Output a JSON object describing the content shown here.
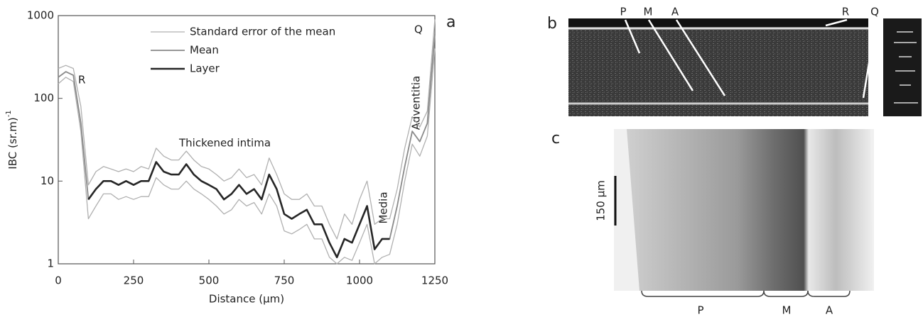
{
  "chart_data": {
    "type": "line",
    "panel_label": "a",
    "xlabel": "Distance (µm)",
    "ylabel": {
      "text": "IBC (sr.m)",
      "superscript": "-1"
    },
    "x": [
      0,
      25,
      50,
      75,
      100,
      125,
      150,
      175,
      200,
      225,
      250,
      275,
      300,
      325,
      350,
      375,
      400,
      425,
      450,
      475,
      500,
      525,
      550,
      575,
      600,
      625,
      650,
      675,
      700,
      725,
      750,
      775,
      800,
      825,
      850,
      875,
      900,
      925,
      950,
      975,
      1000,
      1025,
      1050,
      1075,
      1100,
      1125,
      1150,
      1175,
      1200,
      1225,
      1250
    ],
    "series": [
      {
        "name": "Standard error of the mean",
        "color": "#b0b0b0",
        "width": 1.3,
        "values": [
          230,
          250,
          230,
          80,
          9,
          13,
          15,
          14,
          13,
          14,
          13,
          15,
          14,
          25,
          20,
          18,
          18,
          23,
          18,
          15,
          14,
          12,
          10,
          11,
          14,
          11,
          12,
          9,
          19,
          12,
          7,
          6,
          6,
          7,
          5,
          5,
          3,
          2,
          4,
          3,
          6,
          10,
          3,
          3.5,
          3.5,
          8,
          25,
          60,
          45,
          70,
          900
        ]
      },
      {
        "color": "#b0b0b0",
        "width": 1.3,
        "values": [
          150,
          180,
          160,
          40,
          3.5,
          5,
          7,
          7,
          6,
          6.5,
          6,
          6.5,
          6.5,
          11,
          9,
          8,
          8,
          10,
          8,
          7,
          6,
          5,
          4,
          4.5,
          6,
          5,
          5.5,
          4,
          7,
          5,
          2.5,
          2.3,
          2.6,
          3,
          2,
          2,
          1.2,
          1,
          1.2,
          1.1,
          1.8,
          3,
          1,
          1.2,
          1.3,
          3,
          10,
          28,
          20,
          35,
          400
        ]
      },
      {
        "name": "Mean",
        "color": "#8a8a8a",
        "width": 1.8,
        "values": [
          180,
          210,
          190,
          50,
          6,
          8,
          10,
          10,
          9,
          10,
          9,
          10,
          10,
          17,
          13,
          12,
          12,
          16,
          12,
          10,
          9,
          8,
          6,
          7,
          9,
          7,
          8,
          6,
          12,
          8,
          4,
          3.5,
          4,
          4.5,
          3,
          3,
          1.8,
          1.2,
          2,
          1.8,
          3,
          5,
          1.5,
          2,
          2,
          5,
          15,
          40,
          30,
          50,
          600
        ]
      },
      {
        "name": "Layer",
        "color": "#262626",
        "width": 2.6,
        "values": [
          null,
          null,
          null,
          null,
          6,
          8,
          10,
          10,
          9,
          10,
          9,
          10,
          10,
          17,
          13,
          12,
          12,
          16,
          12,
          10,
          9,
          8,
          6,
          7,
          9,
          7,
          8,
          6,
          12,
          8,
          4,
          3.5,
          4,
          4.5,
          3,
          3,
          1.8,
          1.2,
          2,
          1.8,
          3,
          5,
          1.5,
          2,
          2,
          null,
          null,
          null,
          null,
          null,
          null
        ]
      }
    ],
    "xlim": [
      0,
      1250
    ],
    "xticks": [
      0,
      250,
      500,
      750,
      1000,
      1250
    ],
    "ylim": [
      1,
      1000
    ],
    "yticks": [
      1,
      10,
      100,
      1000
    ],
    "log_y": true,
    "annotations": [
      "R",
      "Q",
      "Thickened intima",
      "Adventitia",
      "Media"
    ]
  },
  "panel_b": {
    "label": "b",
    "markers": [
      "P",
      "M",
      "A",
      "R",
      "Q"
    ]
  },
  "panel_c": {
    "label": "c",
    "scale_bar": "150 µm",
    "regions": [
      "P",
      "M",
      "A"
    ]
  }
}
